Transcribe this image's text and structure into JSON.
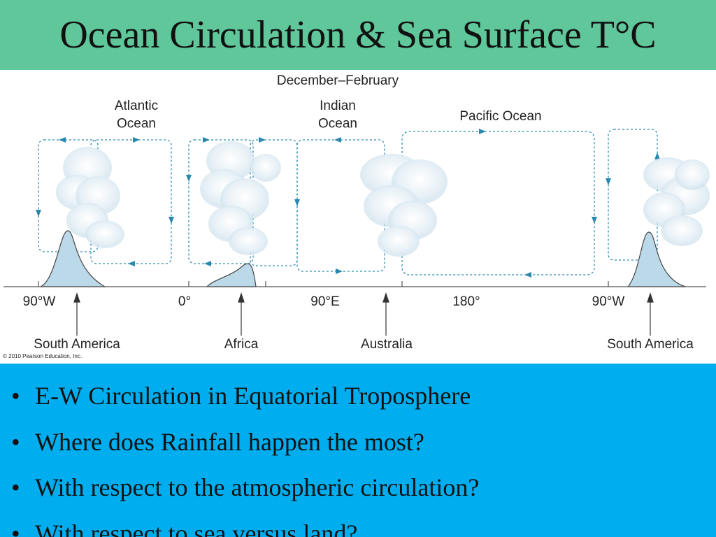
{
  "header": {
    "title": "Ocean Circulation & Sea Surface T°C"
  },
  "diagram": {
    "season": "December–February",
    "oceans": [
      "Atlantic\nOcean",
      "Indian\nOcean",
      "Pacific Ocean"
    ],
    "longitudes": [
      "90°W",
      "0°",
      "90°E",
      "180°",
      "90°W"
    ],
    "landmasses": [
      "South America",
      "Africa",
      "Australia",
      "South America"
    ],
    "credit": "© 2010 Pearson Education, Inc."
  },
  "bullets": [
    "E-W Circulation in Equatorial Troposphere",
    "Where does Rainfall happen the most?",
    "With respect to the atmospheric circulation?",
    "With respect to sea versus land?"
  ]
}
